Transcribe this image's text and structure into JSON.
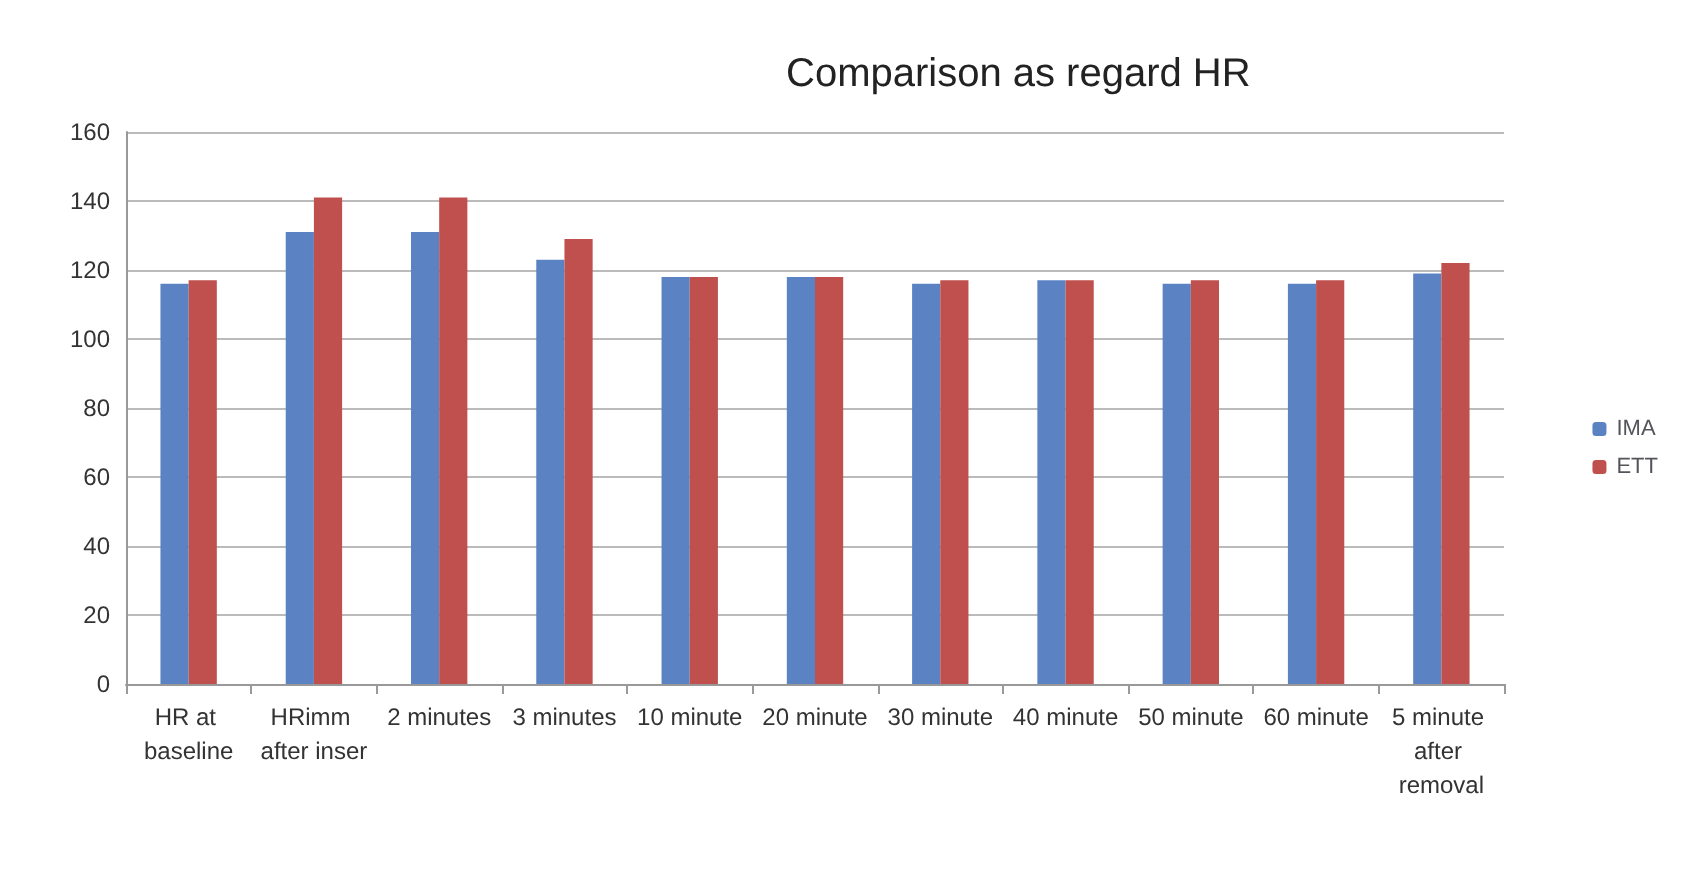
{
  "chart_data": {
    "type": "bar",
    "title": "Comparison as regard HR",
    "categories": [
      "HR at baseline",
      "HRimm after inser",
      "2 minutes",
      "3 minutes",
      "10 minute",
      "20 minute",
      "30 minute",
      "40 minute",
      "50 minute",
      "60 minute",
      "5 minute after removal"
    ],
    "series": [
      {
        "name": "IMA",
        "color": "#5b83c4",
        "values": [
          116,
          131,
          131,
          123,
          118,
          118,
          116,
          117,
          116,
          116,
          119
        ]
      },
      {
        "name": "ETT",
        "color": "#c0504d",
        "values": [
          117,
          141,
          141,
          129,
          118,
          118,
          117,
          117,
          117,
          117,
          122
        ]
      }
    ],
    "ylim": [
      0,
      160
    ],
    "yticks": [
      0,
      20,
      40,
      60,
      80,
      100,
      120,
      140,
      160
    ],
    "grid": "y",
    "legend": "right"
  }
}
